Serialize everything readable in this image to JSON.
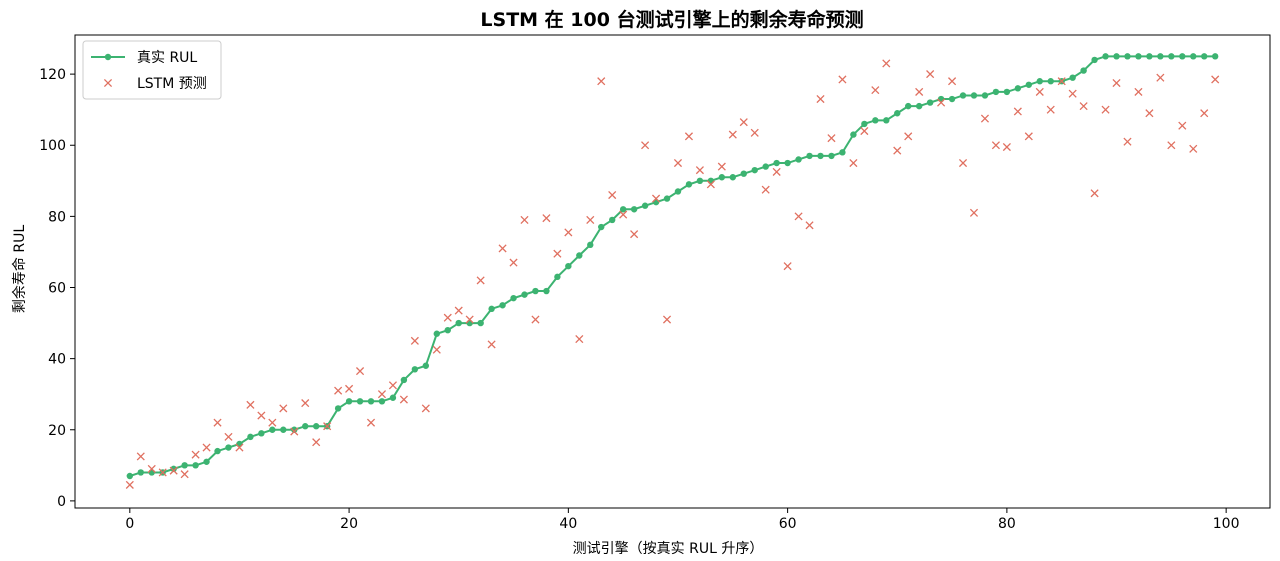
{
  "chart_data": {
    "type": "line+scatter",
    "title": "LSTM 在 100 台测试引擎上的剩余寿命预测",
    "xlabel": "测试引擎（按真实 RUL 升序）",
    "ylabel": "剩余寿命 RUL",
    "xlim": [
      -5,
      104
    ],
    "ylim": [
      -2,
      131
    ],
    "xticks": [
      0,
      20,
      40,
      60,
      80,
      100
    ],
    "yticks": [
      0,
      20,
      40,
      60,
      80,
      100,
      120
    ],
    "grid": false,
    "legend": "top-left",
    "x": [
      0,
      1,
      2,
      3,
      4,
      5,
      6,
      7,
      8,
      9,
      10,
      11,
      12,
      13,
      14,
      15,
      16,
      17,
      18,
      19,
      20,
      21,
      22,
      23,
      24,
      25,
      26,
      27,
      28,
      29,
      30,
      31,
      32,
      33,
      34,
      35,
      36,
      37,
      38,
      39,
      40,
      41,
      42,
      43,
      44,
      45,
      46,
      47,
      48,
      49,
      50,
      51,
      52,
      53,
      54,
      55,
      56,
      57,
      58,
      59,
      60,
      61,
      62,
      63,
      64,
      65,
      66,
      67,
      68,
      69,
      70,
      71,
      72,
      73,
      74,
      75,
      76,
      77,
      78,
      79,
      80,
      81,
      82,
      83,
      84,
      85,
      86,
      87,
      88,
      89,
      90,
      91,
      92,
      93,
      94,
      95,
      96,
      97,
      98,
      99
    ],
    "series": [
      {
        "name": "真实 RUL",
        "type": "line",
        "color": "#3cb371",
        "values": [
          7,
          8,
          8,
          8,
          9,
          10,
          10,
          11,
          14,
          15,
          16,
          18,
          19,
          20,
          20,
          20,
          21,
          21,
          21,
          26,
          28,
          28,
          28,
          28,
          29,
          34,
          37,
          38,
          47,
          48,
          50,
          50,
          50,
          54,
          55,
          57,
          58,
          59,
          59,
          63,
          66,
          69,
          72,
          77,
          79,
          82,
          82,
          83,
          84,
          85,
          87,
          89,
          90,
          90,
          91,
          91,
          92,
          93,
          94,
          95,
          95,
          96,
          97,
          97,
          97,
          98,
          103,
          106,
          107,
          107,
          109,
          111,
          111,
          112,
          113,
          113,
          114,
          114,
          114,
          115,
          115,
          116,
          117,
          118,
          118,
          118,
          119,
          121,
          124,
          125,
          125,
          125,
          125,
          125,
          125,
          125,
          125,
          125,
          125,
          125
        ]
      },
      {
        "name": "LSTM 预测",
        "type": "scatter",
        "color": "#e07060",
        "values": [
          4.5,
          12.5,
          9,
          8,
          8.5,
          7.5,
          13,
          15,
          22,
          18,
          15,
          27,
          24,
          22,
          26,
          19.5,
          27.5,
          16.5,
          21,
          31,
          31.5,
          36.5,
          22,
          30,
          32.5,
          28.5,
          45,
          26,
          42.5,
          51.5,
          53.5,
          51,
          62,
          44,
          71,
          67,
          79,
          51,
          79.5,
          69.5,
          75.5,
          45.5,
          79,
          118,
          86,
          80.5,
          75,
          100,
          85,
          51,
          95,
          102.5,
          93,
          89,
          94,
          103,
          106.5,
          103.5,
          87.5,
          92.5,
          66,
          80,
          77.5,
          113,
          102,
          118.5,
          95,
          104,
          115.5,
          123,
          98.5,
          102.5,
          115,
          120,
          112,
          118,
          95,
          81,
          107.5,
          100,
          99.5,
          109.5,
          102.5,
          115,
          110,
          118,
          114.5,
          111,
          86.5,
          110,
          117.5,
          101,
          115,
          109,
          119,
          100,
          105.5,
          99,
          109,
          118.5
        ]
      }
    ]
  }
}
